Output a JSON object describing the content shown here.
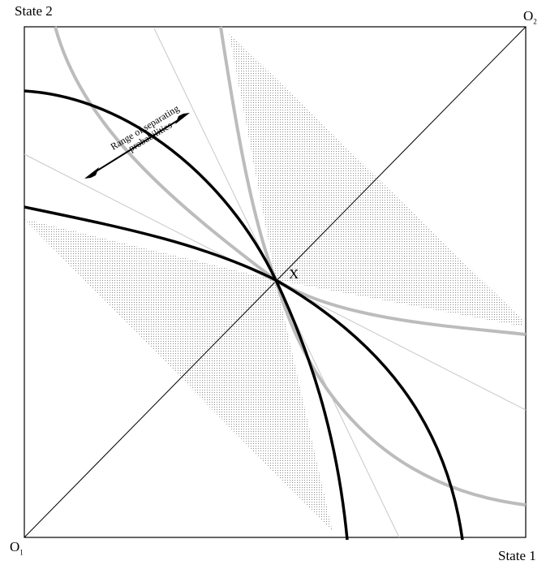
{
  "labels": {
    "y_axis": "State 2",
    "x_axis": "State 1",
    "origin_1": "O",
    "origin_1_sub": "1",
    "origin_2": "O",
    "origin_2_sub": "2",
    "point": "X",
    "annotation_line1": "Range of separating",
    "annotation_line2": "probabilities"
  },
  "colors": {
    "black_curves": "#000000",
    "grey_curves": "#bdbdbd",
    "shading": "#9a9a9a",
    "frame": "#000000"
  }
}
